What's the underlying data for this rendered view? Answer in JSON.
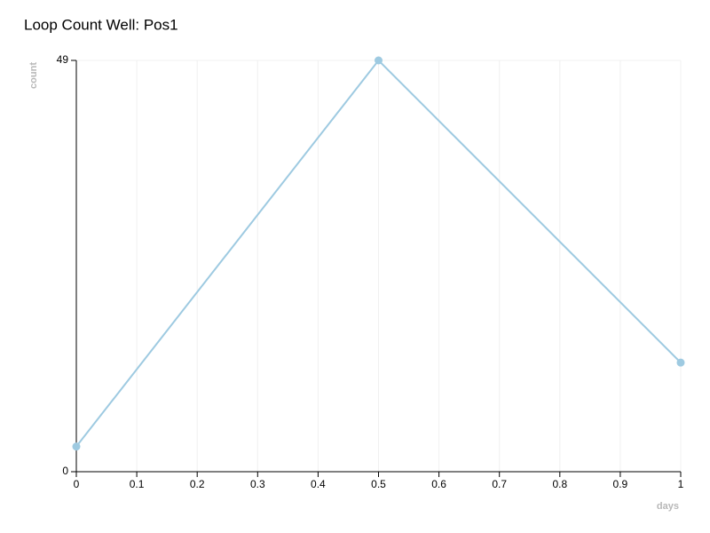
{
  "chart_data": {
    "type": "line",
    "title": "Loop Count Well: Pos1",
    "x_label": "days",
    "y_label": "count",
    "x": [
      0,
      0.5,
      1
    ],
    "values": [
      3,
      49,
      13
    ],
    "color": "#9ecae1",
    "xlim": [
      0,
      1
    ],
    "xticks": [
      0,
      0.1,
      0.2,
      0.3,
      0.4,
      0.5,
      0.6,
      0.7,
      0.8,
      0.9,
      1
    ],
    "ylim": [
      0,
      49
    ],
    "yticks": [
      0,
      49
    ],
    "grid": true
  }
}
